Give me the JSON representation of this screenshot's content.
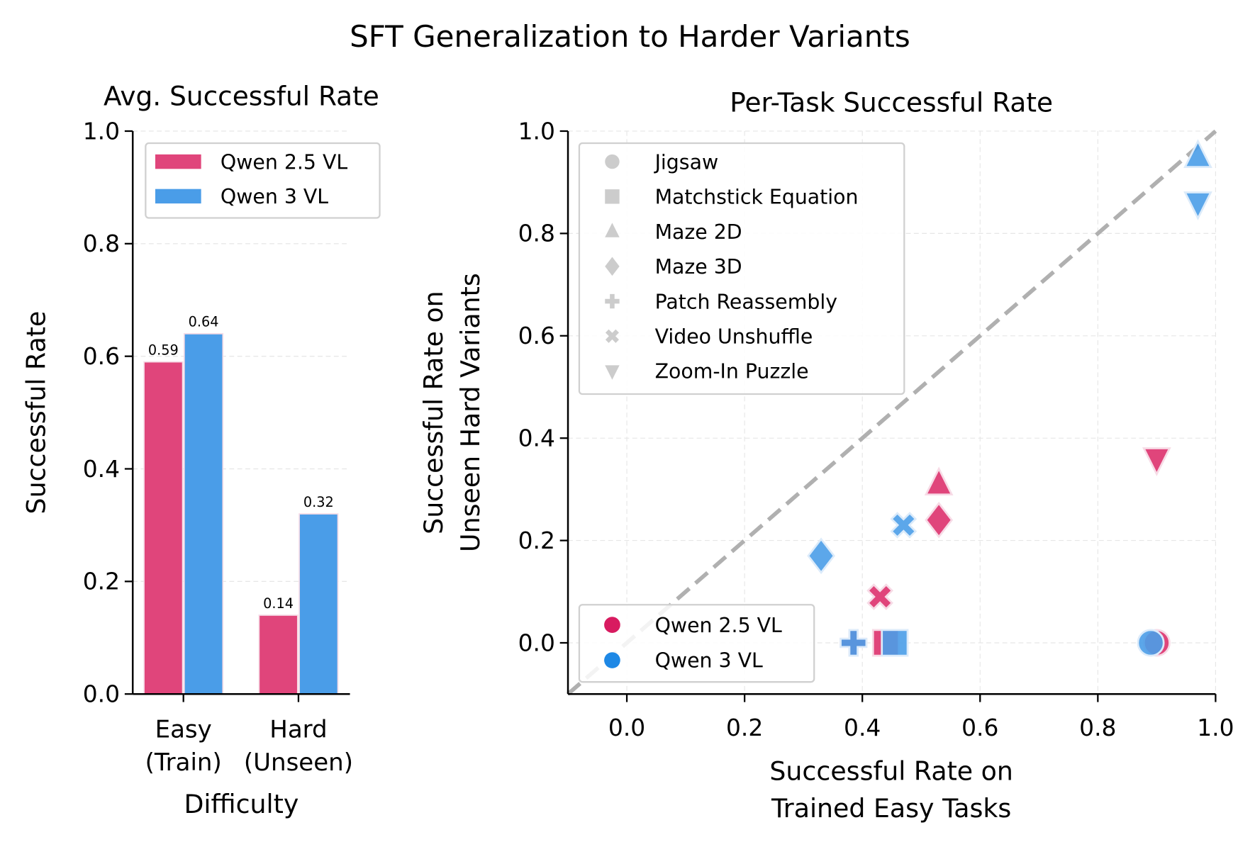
{
  "title": "SFT Generalization to Harder Variants",
  "colors": {
    "qwen25": "#e0457b",
    "qwen3": "#4a9de8",
    "legend_marker": "#cccccc",
    "diagonal": "#b0b0b0"
  },
  "chart_data": [
    {
      "type": "bar",
      "title": "Avg. Successful Rate",
      "xlabel": "Difficulty",
      "ylabel": "Successful Rate",
      "categories": [
        "Easy\n(Train)",
        "Hard\n(Unseen)"
      ],
      "category_lines": [
        [
          "Easy",
          "(Train)"
        ],
        [
          "Hard",
          "(Unseen)"
        ]
      ],
      "ylim": [
        0,
        1.0
      ],
      "yticks": [
        "0.0",
        "0.2",
        "0.4",
        "0.6",
        "0.8",
        "1.0"
      ],
      "grid": "y dashed",
      "legend": "top-right",
      "series": [
        {
          "name": "Qwen 2.5 VL",
          "values": [
            0.59,
            0.14
          ],
          "labels": [
            "0.59",
            "0.14"
          ]
        },
        {
          "name": "Qwen 3 VL",
          "values": [
            0.64,
            0.32
          ],
          "labels": [
            "0.64",
            "0.32"
          ]
        }
      ]
    },
    {
      "type": "scatter",
      "title": "Per-Task Successful Rate",
      "xlabel_lines": [
        "Successful Rate on",
        "Trained Easy Tasks"
      ],
      "ylabel_lines": [
        "Successful Rate on",
        "Unseen Hard Variants"
      ],
      "xlim": [
        -0.1,
        1.0
      ],
      "ylim": [
        -0.1,
        1.0
      ],
      "xticks": [
        "0.0",
        "0.2",
        "0.4",
        "0.6",
        "0.8",
        "1.0"
      ],
      "yticks": [
        "0.0",
        "0.2",
        "0.4",
        "0.6",
        "0.8",
        "1.0"
      ],
      "grid": "dashed",
      "diagonal": "y = x dashed",
      "task_legend": "top-left",
      "model_legend": "bottom-left",
      "tasks": [
        {
          "name": "Jigsaw",
          "marker": "circle"
        },
        {
          "name": "Matchstick Equation",
          "marker": "square"
        },
        {
          "name": "Maze 2D",
          "marker": "triangle-up"
        },
        {
          "name": "Maze 3D",
          "marker": "diamond"
        },
        {
          "name": "Patch Reassembly",
          "marker": "plus"
        },
        {
          "name": "Video Unshuffle",
          "marker": "x"
        },
        {
          "name": "Zoom-In Puzzle",
          "marker": "triangle-down"
        }
      ],
      "series": [
        {
          "name": "Qwen 2.5 VL",
          "points": [
            {
              "task": "Jigsaw",
              "x": 0.9,
              "y": 0.0
            },
            {
              "task": "Matchstick Equation",
              "x": 0.44,
              "y": 0.0
            },
            {
              "task": "Maze 2D",
              "x": 0.53,
              "y": 0.31
            },
            {
              "task": "Maze 3D",
              "x": 0.53,
              "y": 0.24
            },
            {
              "task": "Patch Reassembly",
              "x": 0.385,
              "y": 0.0
            },
            {
              "task": "Video Unshuffle",
              "x": 0.43,
              "y": 0.09
            },
            {
              "task": "Zoom-In Puzzle",
              "x": 0.9,
              "y": 0.36
            }
          ]
        },
        {
          "name": "Qwen 3 VL",
          "points": [
            {
              "task": "Jigsaw",
              "x": 0.89,
              "y": 0.0
            },
            {
              "task": "Matchstick Equation",
              "x": 0.455,
              "y": 0.0
            },
            {
              "task": "Maze 2D",
              "x": 0.97,
              "y": 0.95
            },
            {
              "task": "Maze 3D",
              "x": 0.33,
              "y": 0.17
            },
            {
              "task": "Patch Reassembly",
              "x": 0.385,
              "y": 0.0
            },
            {
              "task": "Video Unshuffle",
              "x": 0.47,
              "y": 0.23
            },
            {
              "task": "Zoom-In Puzzle",
              "x": 0.97,
              "y": 0.86
            }
          ]
        }
      ]
    }
  ]
}
